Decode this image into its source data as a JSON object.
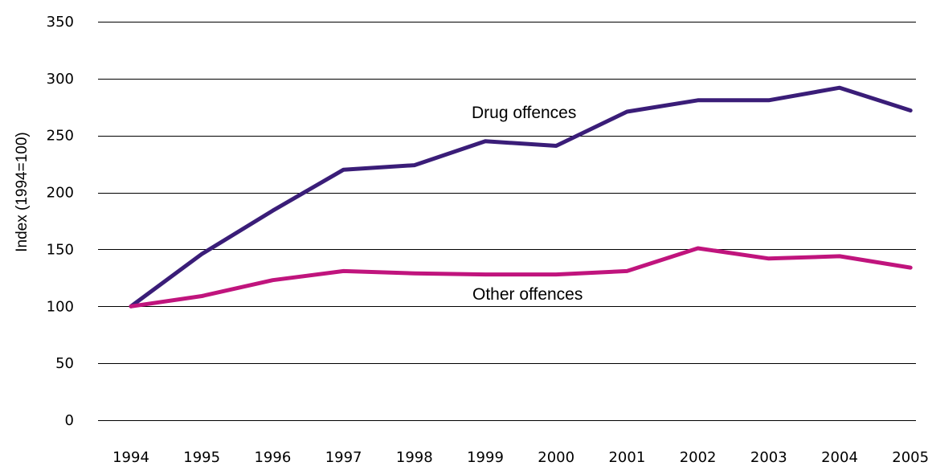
{
  "chart_data": {
    "type": "line",
    "ylabel": "Index (1994=100)",
    "xlabel": "",
    "categories": [
      "1994",
      "1995",
      "1996",
      "1997",
      "1998",
      "1999",
      "2000",
      "2001",
      "2002",
      "2003",
      "2004",
      "2005"
    ],
    "ylim": [
      0,
      350
    ],
    "yticks": [
      0,
      50,
      100,
      150,
      200,
      250,
      300,
      350
    ],
    "grid": true,
    "series": [
      {
        "name": "Drug offences",
        "color": "#3a1d78",
        "values": [
          100,
          146,
          184,
          220,
          224,
          245,
          241,
          271,
          281,
          281,
          292,
          272
        ]
      },
      {
        "name": "Other offences",
        "color": "#c0147d",
        "values": [
          100,
          109,
          123,
          131,
          129,
          128,
          128,
          131,
          151,
          142,
          144,
          134
        ]
      }
    ]
  }
}
